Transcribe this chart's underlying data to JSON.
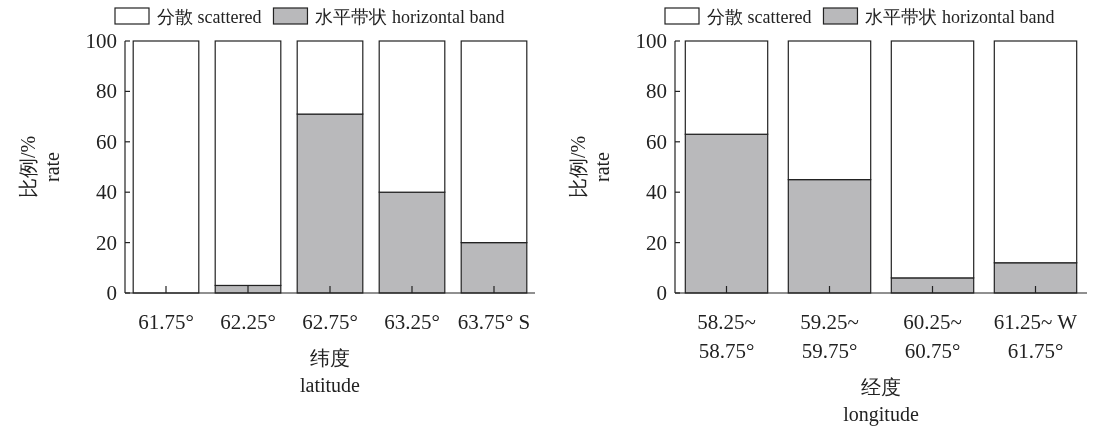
{
  "chart_data": [
    {
      "type": "bar",
      "stacked": true,
      "legend": "top",
      "categories": [
        "61.75°",
        "62.25°",
        "62.75°",
        "63.25°",
        "63.75° S"
      ],
      "series": [
        {
          "name": "水平带状 horizontal band",
          "color": "#b9b9bb",
          "values": [
            0,
            3,
            71,
            40,
            20
          ]
        },
        {
          "name": "分散 scattered",
          "color": "#ffffff",
          "values": [
            100,
            97,
            29,
            60,
            80
          ]
        }
      ],
      "ylim": [
        0,
        100
      ],
      "yticks": [
        0,
        20,
        40,
        60,
        80,
        100
      ],
      "xlabel": "纬度\nlatitude",
      "ylabel": "比例/%\nrate"
    },
    {
      "type": "bar",
      "stacked": true,
      "legend": "top",
      "categories": [
        "58.25~\n58.75°",
        "59.25~\n59.75°",
        "60.25~\n60.75°",
        "61.25~ W\n61.75°"
      ],
      "series": [
        {
          "name": "水平带状 horizontal band",
          "color": "#b9b9bb",
          "values": [
            63,
            45,
            6,
            12
          ]
        },
        {
          "name": "分散 scattered",
          "color": "#ffffff",
          "values": [
            37,
            55,
            94,
            88
          ]
        }
      ],
      "ylim": [
        0,
        100
      ],
      "yticks": [
        0,
        20,
        40,
        60,
        80,
        100
      ],
      "xlabel": "经度\nlongitude",
      "ylabel": "比例/%\nrate"
    }
  ]
}
